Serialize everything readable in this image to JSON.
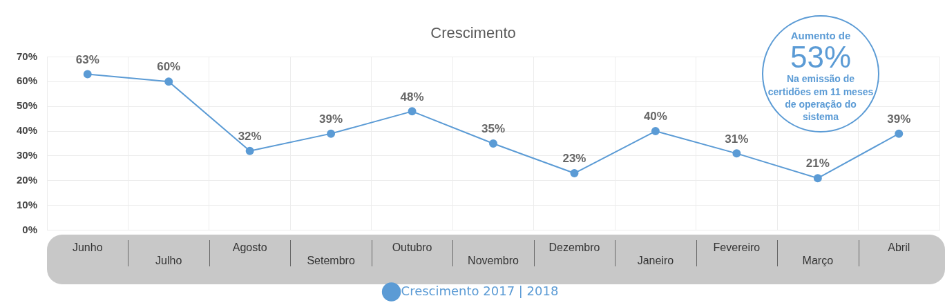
{
  "chart_data": {
    "type": "line",
    "title": "Crescimento",
    "categories": [
      "Junho",
      "Julho",
      "Agosto",
      "Setembro",
      "Outubro",
      "Novembro",
      "Dezembro",
      "Janeiro",
      "Fevereiro",
      "Março",
      "Abril"
    ],
    "series": [
      {
        "name": "Crescimento 2017 | 2018",
        "color": "#5b9bd5",
        "values": [
          63,
          60,
          32,
          39,
          48,
          35,
          23,
          40,
          31,
          21,
          39
        ],
        "value_labels": [
          "63%",
          "60%",
          "32%",
          "39%",
          "48%",
          "35%",
          "23%",
          "40%",
          "31%",
          "21%",
          "39%"
        ]
      }
    ],
    "ylim": [
      0,
      70
    ],
    "yticks": [
      {
        "value": 0,
        "label": "0%"
      },
      {
        "value": 10,
        "label": "10%"
      },
      {
        "value": 20,
        "label": "20%"
      },
      {
        "value": 30,
        "label": "30%"
      },
      {
        "value": 40,
        "label": "40%"
      },
      {
        "value": 50,
        "label": "50%"
      },
      {
        "value": 60,
        "label": "60%"
      },
      {
        "value": 70,
        "label": "70%"
      }
    ],
    "grid": true,
    "legend": "bottom",
    "marker": "circle",
    "line_style": "solid",
    "annotations": [
      "Aumento de",
      "53%",
      "Na emissão de certidões em 11 meses de operação do sistema"
    ]
  }
}
